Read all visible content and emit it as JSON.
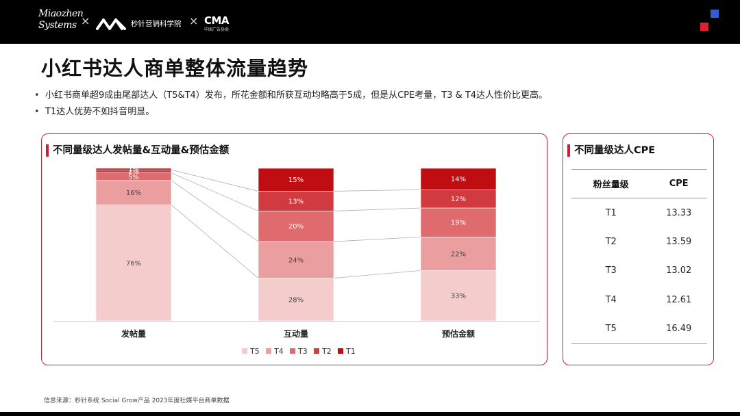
{
  "header": {
    "logo1": [
      "Miaozhen",
      "Systems"
    ],
    "sep": "×",
    "logo2_text": "秒针营销科学院",
    "logo3_mark": "CMA",
    "logo3_sub": "中国广告协会"
  },
  "title": "小红书达人商单整体流量趋势",
  "bullets": [
    "小红书商单超9成由尾部达人（T5&T4）发布，所花金额和所获互动均略高于5成，但是从CPE考量，T3 & T4达人性价比更高。",
    "T1达人优势不如抖音明显。"
  ],
  "left_card_title": "不同量级达人发帖量&互动量&预估金额",
  "right_card_title": "不同量级达人CPE",
  "chart_data": {
    "type": "bar",
    "stacked": true,
    "percent": true,
    "categories": [
      "发帖量",
      "互动量",
      "预估金额"
    ],
    "series": [
      {
        "name": "T5",
        "values": [
          76,
          28,
          33
        ],
        "labels": [
          "76%",
          "28%",
          "33%"
        ],
        "color": "#f4cccc"
      },
      {
        "name": "T4",
        "values": [
          16,
          24,
          22
        ],
        "labels": [
          "16%",
          "24%",
          "22%"
        ],
        "color": "#eb9e9f"
      },
      {
        "name": "T3",
        "values": [
          5,
          20,
          19
        ],
        "labels": [
          "5%",
          "20%",
          "19%"
        ],
        "color": "#df6b6e"
      },
      {
        "name": "T2",
        "values": [
          2,
          13,
          12
        ],
        "labels": [
          "2%",
          "13%",
          "12%"
        ],
        "color": "#d13a3e"
      },
      {
        "name": "T1",
        "values": [
          1,
          15,
          14
        ],
        "labels": [
          "1%",
          "15%",
          "14%"
        ],
        "color": "#bf0d12"
      }
    ],
    "legend_position": "bottom",
    "grid": false
  },
  "cpe_table": {
    "headers": [
      "粉丝量级",
      "CPE"
    ],
    "rows": [
      [
        "T1",
        "13.33"
      ],
      [
        "T2",
        "13.59"
      ],
      [
        "T3",
        "13.02"
      ],
      [
        "T4",
        "12.61"
      ],
      [
        "T5",
        "16.49"
      ]
    ]
  },
  "source": "信息来源：秒针系统  Social Grow产品  2023年度社媒平台商单数据"
}
